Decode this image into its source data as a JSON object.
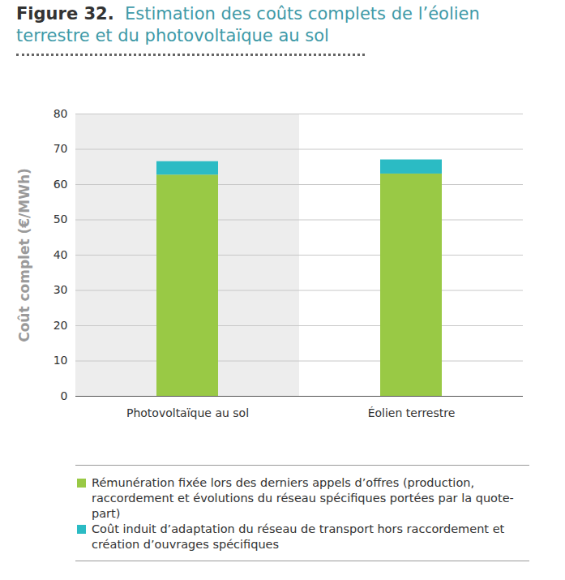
{
  "chart_data": {
    "type": "bar",
    "title": "Figure 32. Estimation des coûts complets de l’éolien terrestre et du photovoltaïque au sol",
    "y_label": "Coût complet (€/MWh)",
    "categories": [
      "Photovoltaïque au sol",
      "Éolien terrestre"
    ],
    "series": [
      {
        "name": "Rémunération fixée lors des derniers appels d’offres (production, raccordement et évolutions du réseau spécifiques portées par la quote-part)",
        "color": "#99c945",
        "values": [
          62.7,
          63.0
        ]
      },
      {
        "name": "Coût induit d’adaptation du réseau de transport hors raccordement et création d’ouvrages spécifiques",
        "color": "#2bbbc4",
        "values": [
          3.8,
          4.0
        ]
      }
    ],
    "stacked": true,
    "ylim": [
      0,
      80
    ],
    "yticks": [
      0,
      10,
      20,
      30,
      40,
      50,
      60,
      70,
      80
    ],
    "grid": true,
    "legend": "bottom"
  }
}
